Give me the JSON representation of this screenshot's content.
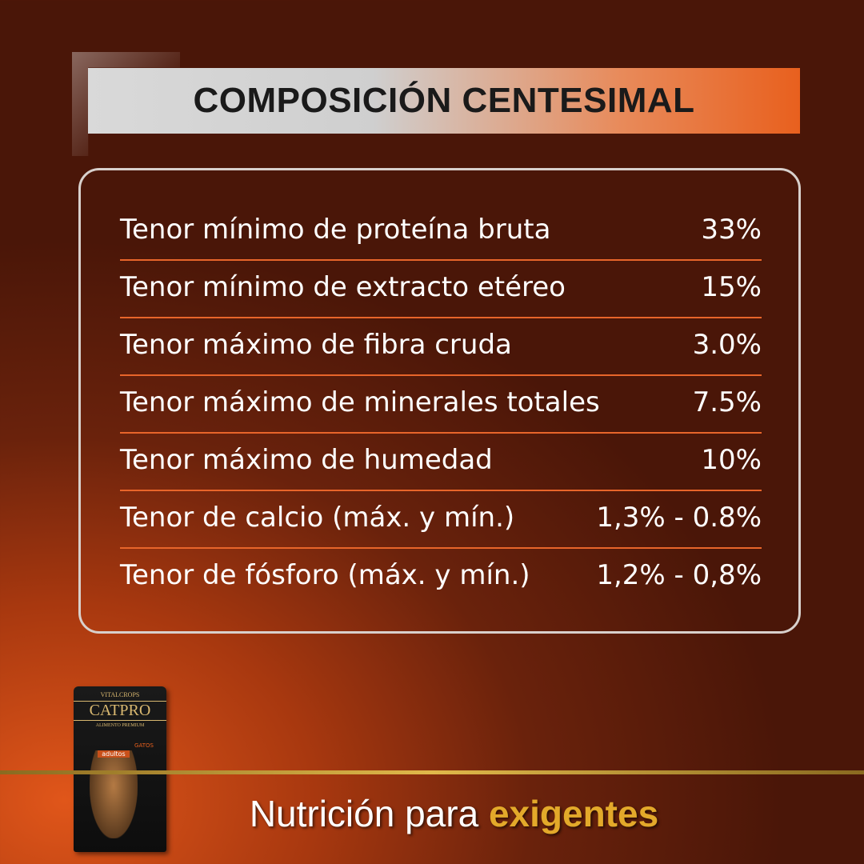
{
  "header": {
    "title": "COMPOSICIÓN CENTESIMAL"
  },
  "table": {
    "rows": [
      [
        "Tenor mínimo de proteína bruta",
        "33%"
      ],
      [
        "Tenor mínimo de extracto etéreo",
        "15%"
      ],
      [
        "Tenor máximo de fibra cruda",
        "3.0%"
      ],
      [
        "Tenor máximo de minerales totales",
        "7.5%"
      ],
      [
        "Tenor máximo de humedad",
        "10%"
      ],
      [
        "Tenor de calcio (máx. y mín.)",
        "1,3% - 0.8%"
      ],
      [
        "Tenor de fósforo (máx. y mín.)",
        "1,2% - 0,8%"
      ]
    ]
  },
  "product": {
    "maker": "VITALCROPS",
    "brand": "CATPRO",
    "line": "ALIMENTO PREMIUM",
    "kind": "GATOS",
    "stage": "adultos"
  },
  "footer": {
    "text": "Nutrición para",
    "highlight": "exigentes"
  }
}
